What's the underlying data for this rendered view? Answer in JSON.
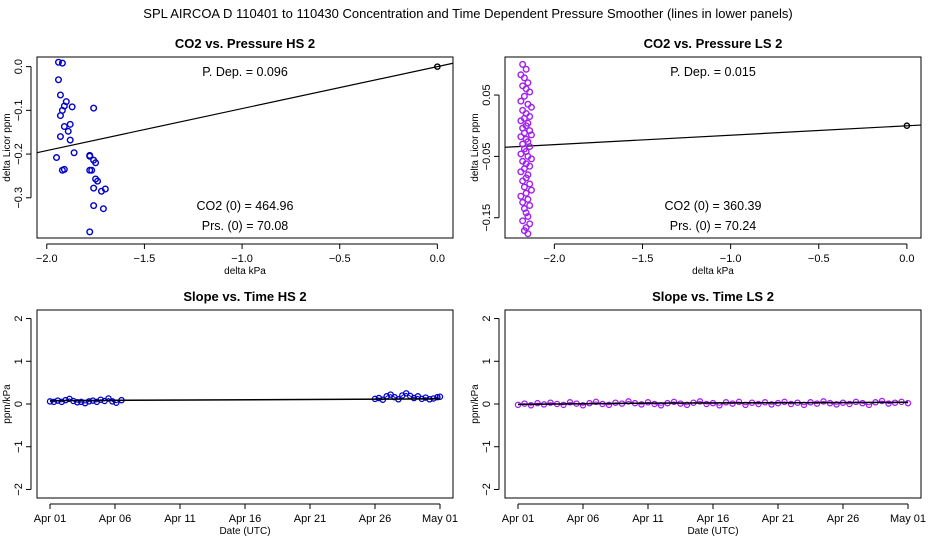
{
  "suptitle": "SPL   AIRCOA D   110401 to 110430   Concentration and Time Dependent Pressure Smoother (lines in lower panels)",
  "colors": {
    "hs_points": "#0000cc",
    "ls_points": "#a020f0",
    "line": "#000000",
    "frame": "#000000"
  },
  "chart_data": [
    {
      "type": "scatter",
      "panel": "top-left",
      "title": "CO2 vs. Pressure HS 2",
      "xlabel": "delta kPa",
      "ylabel": "delta Licor ppm",
      "xlim": [
        -2.05,
        0.08
      ],
      "ylim": [
        -0.392,
        0.022
      ],
      "xticks": [
        -2.0,
        -1.5,
        -1.0,
        -0.5,
        0.0
      ],
      "xtick_labels": [
        "−2.0",
        "−1.5",
        "−1.0",
        "−0.5",
        "0.0"
      ],
      "yticks": [
        0.0,
        -0.1,
        -0.2,
        -0.3
      ],
      "ytick_labels": [
        "0.0",
        "−0.1",
        "−0.2",
        "−0.3"
      ],
      "annotations": {
        "p_dep": "P. Dep. =  0.096",
        "co2_0": "CO2 (0) =  464.96",
        "prs_0": "Prs. (0) = 70.08"
      },
      "fit_line": {
        "x0": -2.05,
        "y0": -0.1968,
        "x1": 0.08,
        "y1": 0.0077
      },
      "anchor_point": [
        0.0,
        0.0
      ],
      "series": [
        {
          "name": "HS 2",
          "x": [
            -1.94,
            -1.92,
            -1.94,
            -1.93,
            -1.9,
            -1.91,
            -1.87,
            -1.92,
            -1.93,
            -1.88,
            -1.89,
            -1.91,
            -1.93,
            -1.88,
            -1.86,
            -1.95,
            -1.92,
            -1.91,
            -1.78,
            -1.78,
            -1.76,
            -1.75,
            -1.77,
            -1.78,
            -1.75,
            -1.74,
            -1.76,
            -1.72,
            -1.7,
            -1.76,
            -1.71,
            -1.78,
            -1.76
          ],
          "y": [
            0.01,
            0.008,
            -0.03,
            -0.065,
            -0.08,
            -0.09,
            -0.092,
            -0.1,
            -0.112,
            -0.132,
            -0.148,
            -0.137,
            -0.16,
            -0.168,
            -0.197,
            -0.208,
            -0.237,
            -0.235,
            -0.203,
            -0.205,
            -0.214,
            -0.22,
            -0.237,
            -0.237,
            -0.257,
            -0.262,
            -0.278,
            -0.285,
            -0.28,
            -0.318,
            -0.325,
            -0.378,
            -0.095
          ]
        }
      ]
    },
    {
      "type": "scatter",
      "panel": "top-right",
      "title": "CO2 vs. Pressure LS 2",
      "xlabel": "delta kPa",
      "ylabel": "delta Licor ppm",
      "xlim": [
        -2.28,
        0.08
      ],
      "ylim": [
        -0.183,
        0.112
      ],
      "xticks": [
        -2.0,
        -1.5,
        -1.0,
        -0.5,
        0.0
      ],
      "xtick_labels": [
        "−2.0",
        "−1.5",
        "−1.0",
        "−0.5",
        "0.0"
      ],
      "yticks": [
        0.05,
        -0.05,
        -0.15
      ],
      "ytick_labels": [
        "0.05",
        "−0.05",
        "−0.15"
      ],
      "annotations": {
        "p_dep": "P. Dep. =  0.015",
        "co2_0": "CO2 (0) =  360.39",
        "prs_0": "Prs. (0) = 70.24"
      },
      "fit_line": {
        "x0": -2.28,
        "y0": -0.0351,
        "x1": 0.08,
        "y1": 0.0011
      },
      "anchor_point": [
        0.0,
        0.0
      ],
      "series": [
        {
          "name": "LS 2",
          "x": [
            -2.18,
            -2.16,
            -2.19,
            -2.17,
            -2.15,
            -2.18,
            -2.16,
            -2.14,
            -2.17,
            -2.19,
            -2.15,
            -2.13,
            -2.18,
            -2.16,
            -2.14,
            -2.17,
            -2.19,
            -2.15,
            -2.16,
            -2.18,
            -2.14,
            -2.17,
            -2.13,
            -2.19,
            -2.16,
            -2.15,
            -2.18,
            -2.14,
            -2.17,
            -2.16,
            -2.19,
            -2.15,
            -2.13,
            -2.18,
            -2.16,
            -2.14,
            -2.17,
            -2.19,
            -2.15,
            -2.16,
            -2.18,
            -2.14,
            -2.17,
            -2.13,
            -2.16,
            -2.19,
            -2.15,
            -2.18,
            -2.14,
            -2.17,
            -2.16,
            -2.15,
            -2.18,
            -2.14,
            -2.16,
            -2.17,
            -2.15
          ],
          "y": [
            0.1,
            0.092,
            0.083,
            0.078,
            0.07,
            0.065,
            0.06,
            0.055,
            0.048,
            0.04,
            0.035,
            0.03,
            0.025,
            0.02,
            0.015,
            0.012,
            0.008,
            0.004,
            0.0,
            -0.004,
            -0.008,
            -0.012,
            -0.015,
            -0.018,
            -0.022,
            -0.026,
            -0.03,
            -0.034,
            -0.038,
            -0.042,
            -0.046,
            -0.05,
            -0.054,
            -0.058,
            -0.062,
            -0.066,
            -0.07,
            -0.075,
            -0.08,
            -0.085,
            -0.09,
            -0.095,
            -0.1,
            -0.105,
            -0.11,
            -0.115,
            -0.12,
            -0.125,
            -0.13,
            -0.135,
            -0.142,
            -0.148,
            -0.155,
            -0.16,
            -0.166,
            -0.171,
            -0.176
          ]
        }
      ]
    },
    {
      "type": "line",
      "panel": "bottom-left",
      "title": "Slope vs. Time HS 2",
      "xlabel": "Date (UTC)",
      "ylabel": "ppm/kPa",
      "xlim": [
        -1.0,
        31.0
      ],
      "ylim": [
        -2.2,
        2.2
      ],
      "xticks": [
        0,
        5,
        10,
        15,
        20,
        25,
        30
      ],
      "xtick_labels": [
        "Apr 01",
        "Apr 06",
        "Apr 11",
        "Apr 16",
        "Apr 21",
        "Apr 26",
        "May 01"
      ],
      "yticks": [
        2,
        1,
        0,
        -1,
        -2
      ],
      "ytick_labels": [
        "2",
        "1",
        "0",
        "−1",
        "−2"
      ],
      "smoother": {
        "x": [
          0.0,
          30.0
        ],
        "y": [
          0.08,
          0.12
        ]
      },
      "series": [
        {
          "name": "HS 2 slope",
          "x": [
            0.0,
            0.3,
            0.6,
            0.9,
            1.2,
            1.5,
            1.8,
            2.1,
            2.4,
            2.7,
            3.0,
            3.3,
            3.6,
            3.9,
            4.2,
            4.5,
            4.8,
            5.1,
            5.5,
            25.0,
            25.3,
            25.6,
            25.9,
            26.2,
            26.5,
            26.8,
            27.1,
            27.4,
            27.7,
            28.0,
            28.3,
            28.6,
            28.9,
            29.2,
            29.5,
            29.8,
            30.0
          ],
          "y": [
            0.06,
            0.05,
            0.08,
            0.05,
            0.09,
            0.12,
            0.07,
            0.04,
            0.05,
            0.02,
            0.06,
            0.08,
            0.05,
            0.1,
            0.07,
            0.13,
            0.06,
            0.03,
            0.09,
            0.12,
            0.14,
            0.1,
            0.18,
            0.22,
            0.16,
            0.11,
            0.2,
            0.25,
            0.19,
            0.14,
            0.18,
            0.12,
            0.15,
            0.11,
            0.13,
            0.16,
            0.17
          ]
        }
      ]
    },
    {
      "type": "line",
      "panel": "bottom-right",
      "title": "Slope vs. Time LS 2",
      "xlabel": "Date (UTC)",
      "ylabel": "ppm/kPa",
      "xlim": [
        -1.0,
        31.0
      ],
      "ylim": [
        -2.2,
        2.2
      ],
      "xticks": [
        0,
        5,
        10,
        15,
        20,
        25,
        30
      ],
      "xtick_labels": [
        "Apr 01",
        "Apr 06",
        "Apr 11",
        "Apr 16",
        "Apr 21",
        "Apr 26",
        "May 01"
      ],
      "yticks": [
        2,
        1,
        0,
        -1,
        -2
      ],
      "ytick_labels": [
        "2",
        "1",
        "0",
        "−1",
        "−2"
      ],
      "smoother": {
        "x": [
          0.0,
          10.0,
          20.0,
          30.0
        ],
        "y": [
          -0.01,
          0.02,
          0.03,
          0.04
        ]
      },
      "series": [
        {
          "name": "LS 2 slope",
          "x": [
            0.0,
            0.5,
            1.0,
            1.5,
            2.0,
            2.5,
            3.0,
            3.5,
            4.0,
            4.5,
            5.0,
            5.5,
            6.0,
            6.5,
            7.0,
            7.5,
            8.0,
            8.5,
            9.0,
            9.5,
            10.0,
            10.5,
            11.0,
            11.5,
            12.0,
            12.5,
            13.0,
            13.5,
            14.0,
            14.5,
            15.0,
            15.5,
            16.0,
            16.5,
            17.0,
            17.5,
            18.0,
            18.5,
            19.0,
            19.5,
            20.0,
            20.5,
            21.0,
            21.5,
            22.0,
            22.5,
            23.0,
            23.5,
            24.0,
            24.5,
            25.0,
            25.5,
            26.0,
            26.5,
            27.0,
            27.5,
            28.0,
            28.5,
            29.0,
            29.5,
            30.0
          ],
          "y": [
            -0.02,
            0.01,
            -0.03,
            0.02,
            -0.01,
            0.03,
            0.0,
            -0.02,
            0.04,
            0.01,
            -0.03,
            0.02,
            0.05,
            0.0,
            -0.02,
            0.03,
            0.01,
            0.06,
            0.02,
            -0.01,
            0.04,
            0.0,
            -0.03,
            0.02,
            0.05,
            0.01,
            -0.02,
            0.03,
            0.06,
            0.0,
            0.02,
            -0.03,
            0.04,
            0.01,
            0.05,
            -0.02,
            0.03,
            0.0,
            0.04,
            -0.01,
            0.02,
            0.05,
            0.0,
            0.03,
            -0.02,
            0.04,
            0.01,
            0.06,
            0.02,
            -0.01,
            0.03,
            0.0,
            0.05,
            0.02,
            -0.02,
            0.04,
            0.07,
            0.01,
            0.03,
            0.05,
            0.02
          ]
        }
      ]
    }
  ]
}
